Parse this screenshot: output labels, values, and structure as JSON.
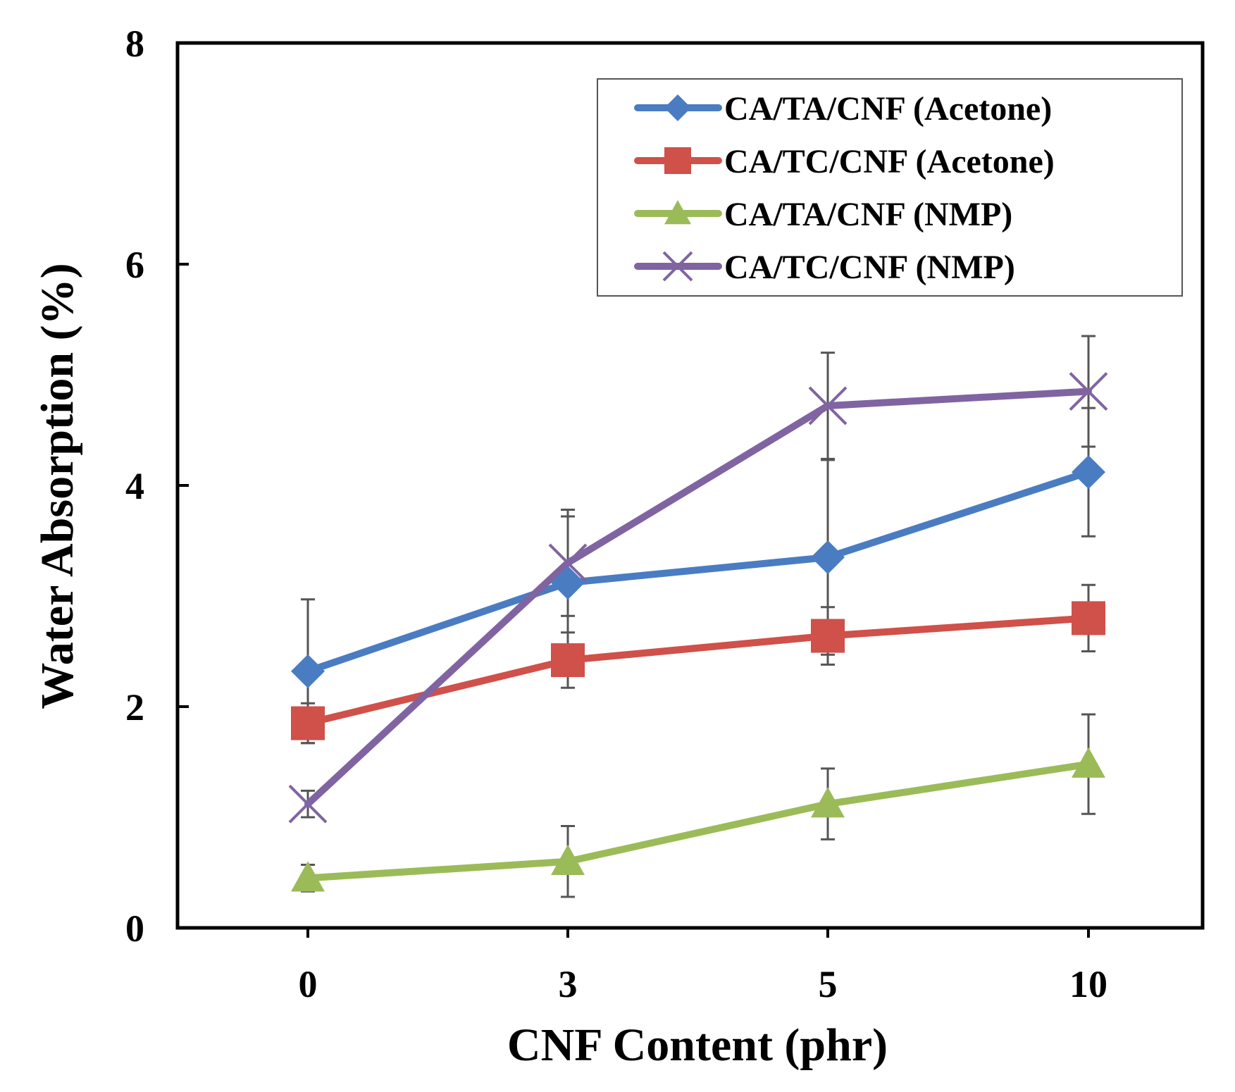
{
  "chart_data": {
    "type": "line",
    "title": "",
    "xlabel": "CNF Content (phr)",
    "ylabel": "Water Absorption (%)",
    "categories": [
      "0",
      "3",
      "5",
      "10"
    ],
    "ylim": [
      0,
      8
    ],
    "yticks": [
      "0",
      "2",
      "4",
      "6",
      "8"
    ],
    "grid": false,
    "legend_position": "top-right",
    "series": [
      {
        "name": "CA/TA/CNF (Acetone)",
        "color": "#4a7cc2",
        "marker": "diamond",
        "values": [
          2.32,
          3.12,
          3.35,
          4.12
        ],
        "errors": [
          0.65,
          0.6,
          0.88,
          0.58
        ]
      },
      {
        "name": "CA/TC/CNF (Acetone)",
        "color": "#d0504a",
        "marker": "square",
        "values": [
          1.85,
          2.42,
          2.64,
          2.8
        ],
        "errors": [
          0.18,
          0.25,
          0.26,
          0.3
        ]
      },
      {
        "name": "CA/TA/CNF (NMP)",
        "color": "#9bbb59",
        "marker": "triangle",
        "values": [
          0.45,
          0.6,
          1.12,
          1.48
        ],
        "errors": [
          0.12,
          0.32,
          0.32,
          0.45
        ]
      },
      {
        "name": "CA/TC/CNF (NMP)",
        "color": "#8064a2",
        "marker": "x",
        "values": [
          1.12,
          3.3,
          4.72,
          4.85
        ],
        "errors": [
          0.12,
          0.48,
          0.48,
          0.5
        ]
      }
    ]
  }
}
